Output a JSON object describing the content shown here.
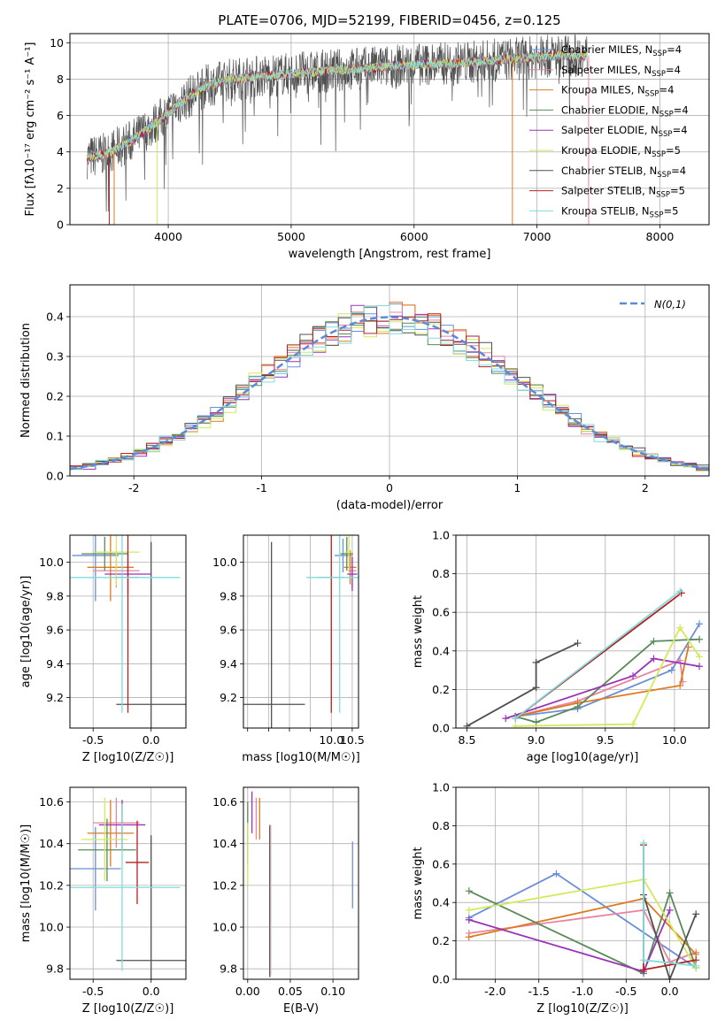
{
  "colors": {
    "Chabrier MILES": "#6a8fd8",
    "Salpeter MILES": "#e8849f",
    "Kroupa MILES": "#dd7b20",
    "Chabrier ELODIE": "#5a8a5a",
    "Salpeter ELODIE": "#9a34b8",
    "Kroupa ELODIE": "#d2ea5a",
    "Chabrier STELIB": "#505050",
    "Salpeter STELIB": "#b52020",
    "Kroupa STELIB": "#80dcdc"
  },
  "legend_labels": [
    {
      "name": "Chabrier MILES",
      "text": "Chabrier MILES, N",
      "sub": "SSP",
      "tail": "=4"
    },
    {
      "name": "Salpeter MILES",
      "text": "Salpeter MILES, N",
      "sub": "SSP",
      "tail": "=4"
    },
    {
      "name": "Kroupa MILES",
      "text": "Kroupa MILES, N",
      "sub": "SSP",
      "tail": "=4"
    },
    {
      "name": "Chabrier ELODIE",
      "text": "Chabrier ELODIE, N",
      "sub": "SSP",
      "tail": "=4"
    },
    {
      "name": "Salpeter ELODIE",
      "text": "Salpeter ELODIE, N",
      "sub": "SSP",
      "tail": "=4"
    },
    {
      "name": "Kroupa ELODIE",
      "text": "Kroupa ELODIE, N",
      "sub": "SSP",
      "tail": "=5"
    },
    {
      "name": "Chabrier STELIB",
      "text": "Chabrier STELIB, N",
      "sub": "SSP",
      "tail": "=4"
    },
    {
      "name": "Salpeter STELIB",
      "text": "Salpeter STELIB, N",
      "sub": "SSP",
      "tail": "=5"
    },
    {
      "name": "Kroupa STELIB",
      "text": "Kroupa STELIB, N",
      "sub": "SSP",
      "tail": "=5"
    }
  ],
  "chart_data": [
    {
      "id": "spectrum",
      "type": "line",
      "title": "PLATE=0706, MJD=52199, FIBERID=0456, z=0.125",
      "xlabel": "wavelength [Angstrom, rest frame]",
      "ylabel": "Flux [fλ10⁻¹⁷ erg cm⁻² s⁻¹ A⁻¹]",
      "xlim": [
        3200,
        8400
      ],
      "ylim": [
        0,
        10.5
      ],
      "xticks": [
        4000,
        5000,
        6000,
        7000,
        8000
      ],
      "yticks": [
        0,
        2,
        4,
        6,
        8,
        10
      ],
      "legend_position": "right",
      "data_envelope": {
        "x": [
          3340,
          3500,
          3700,
          3900,
          4100,
          4300,
          4500,
          4800,
          5200,
          5600,
          6000,
          6400,
          6800,
          7200,
          7400
        ],
        "y": [
          3.7,
          3.9,
          4.6,
          5.6,
          6.7,
          7.6,
          8.0,
          8.2,
          8.4,
          8.6,
          8.8,
          8.9,
          9.1,
          9.3,
          9.3
        ]
      }
    },
    {
      "id": "residuals",
      "type": "area",
      "xlabel": "(data-model)/error",
      "ylabel": "Normed distribution",
      "xlim": [
        -2.5,
        2.5
      ],
      "ylim": [
        0,
        0.48
      ],
      "xticks": [
        -2,
        -1,
        0,
        1,
        2
      ],
      "yticks": [
        0.0,
        0.1,
        0.2,
        0.3,
        0.4
      ],
      "legend": [
        {
          "label": "N(0,1)",
          "style": "dashed",
          "color": "#5b8ad8"
        }
      ],
      "legend_position": "top-right",
      "gaussian": {
        "mean": 0,
        "sigma": 1
      }
    },
    {
      "id": "age-vs-z",
      "type": "scatter",
      "xlabel": "Z [log10(Z/Z☉)]",
      "ylabel": "age  [log10(age/yr)]",
      "xlim": [
        -0.7,
        0.3
      ],
      "ylim": [
        9.02,
        10.16
      ],
      "xticks": [
        -0.5,
        0.0
      ],
      "yticks": [
        9.2,
        9.4,
        9.6,
        9.8,
        10.0
      ],
      "points": [
        {
          "model": "Chabrier MILES",
          "x": -0.48,
          "xerr": 0.2,
          "y": 10.04,
          "yerr": 0.27
        },
        {
          "model": "Salpeter MILES",
          "x": -0.3,
          "xerr": 0.2,
          "y": 9.95,
          "yerr": 0.1
        },
        {
          "model": "Kroupa MILES",
          "x": -0.35,
          "xerr": 0.2,
          "y": 9.97,
          "yerr": 0.2
        },
        {
          "model": "Chabrier ELODIE",
          "x": -0.4,
          "xerr": 0.2,
          "y": 10.05,
          "yerr": 0.1
        },
        {
          "model": "Salpeter ELODIE",
          "x": -0.2,
          "xerr": 0.2,
          "y": 9.93,
          "yerr": 0.12
        },
        {
          "model": "Kroupa ELODIE",
          "x": -0.3,
          "xerr": 0.2,
          "y": 10.06,
          "yerr": 0.2
        },
        {
          "model": "Chabrier STELIB",
          "x": 0.0,
          "xerr": 0.3,
          "y": 9.16,
          "yerr": 0.96
        },
        {
          "model": "Salpeter STELIB",
          "x": -0.2,
          "xerr": 0.1,
          "y": 9.91,
          "yerr": 0.8
        },
        {
          "model": "Kroupa STELIB",
          "x": -0.25,
          "xerr": 0.5,
          "y": 9.91,
          "yerr": 0.8
        }
      ]
    },
    {
      "id": "age-vs-mass",
      "type": "scatter",
      "xlabel": "mass [log10(M/M☉)]",
      "ylabel": "",
      "xlim": [
        7.9,
        10.65
      ],
      "ylim": [
        9.02,
        10.16
      ],
      "xticks": [
        8.0,
        8.5,
        9.0,
        9.5,
        10.0,
        10.5
      ],
      "xtick_labels": [
        "",
        "",
        "",
        "",
        "10.0",
        "10.5"
      ],
      "yticks": [
        9.2,
        9.4,
        9.6,
        9.8,
        10.0
      ],
      "points": [
        {
          "model": "Chabrier MILES",
          "x": 10.28,
          "xerr": 0.2,
          "y": 10.04,
          "yerr": 0.1
        },
        {
          "model": "Salpeter MILES",
          "x": 10.5,
          "xerr": 0.1,
          "y": 9.95,
          "yerr": 0.1
        },
        {
          "model": "Kroupa MILES",
          "x": 10.45,
          "xerr": 0.15,
          "y": 9.97,
          "yerr": 0.1
        },
        {
          "model": "Chabrier ELODIE",
          "x": 10.37,
          "xerr": 0.15,
          "y": 10.05,
          "yerr": 0.1
        },
        {
          "model": "Salpeter ELODIE",
          "x": 10.5,
          "xerr": 0.12,
          "y": 9.93,
          "yerr": 0.1
        },
        {
          "model": "Kroupa ELODIE",
          "x": 10.42,
          "xerr": 0.1,
          "y": 10.06,
          "yerr": 0.1
        },
        {
          "model": "Chabrier STELIB",
          "x": 8.57,
          "xerr": 0.8,
          "y": 9.16,
          "yerr": 0.96
        },
        {
          "model": "Salpeter STELIB",
          "x": 10.0,
          "xerr": 0.3,
          "y": 9.91,
          "yerr": 0.8
        },
        {
          "model": "Kroupa STELIB",
          "x": 10.2,
          "xerr": 0.8,
          "y": 9.91,
          "yerr": 0.8
        }
      ]
    },
    {
      "id": "weight-vs-age",
      "type": "line",
      "xlabel": "age  [log10(age/yr)]",
      "ylabel": "mass weight",
      "xlim": [
        8.42,
        10.25
      ],
      "ylim": [
        0,
        1.0
      ],
      "xticks": [
        8.5,
        9.0,
        9.5,
        10.0
      ],
      "yticks": [
        0.0,
        0.2,
        0.4,
        0.6,
        0.8,
        1.0
      ],
      "series": [
        {
          "model": "Chabrier MILES",
          "x": [
            8.85,
            9.3,
            9.98,
            10.18
          ],
          "y": [
            0.06,
            0.1,
            0.3,
            0.54
          ]
        },
        {
          "model": "Salpeter MILES",
          "x": [
            8.85,
            9.3,
            10.04,
            10.06
          ],
          "y": [
            0.06,
            0.14,
            0.35,
            0.24
          ]
        },
        {
          "model": "Kroupa MILES",
          "x": [
            8.85,
            9.3,
            10.04,
            10.1
          ],
          "y": [
            0.06,
            0.13,
            0.22,
            0.42
          ]
        },
        {
          "model": "Chabrier ELODIE",
          "x": [
            8.85,
            9.0,
            9.3,
            9.85,
            10.18
          ],
          "y": [
            0.06,
            0.03,
            0.11,
            0.45,
            0.46
          ]
        },
        {
          "model": "Salpeter ELODIE",
          "x": [
            8.78,
            9.7,
            9.85,
            10.18
          ],
          "y": [
            0.05,
            0.27,
            0.36,
            0.32
          ]
        },
        {
          "model": "Kroupa ELODIE",
          "x": [
            8.85,
            9.7,
            10.04,
            10.18
          ],
          "y": [
            0.01,
            0.02,
            0.52,
            0.37
          ]
        },
        {
          "model": "Chabrier STELIB",
          "x": [
            8.5,
            9.0,
            9.0,
            9.3
          ],
          "y": [
            0.01,
            0.21,
            0.34,
            0.44
          ]
        },
        {
          "model": "Salpeter STELIB",
          "x": [
            8.85,
            10.05
          ],
          "y": [
            0.05,
            0.7
          ]
        },
        {
          "model": "Kroupa STELIB",
          "x": [
            8.85,
            10.04
          ],
          "y": [
            0.05,
            0.71
          ]
        }
      ]
    },
    {
      "id": "mass-vs-z",
      "type": "scatter",
      "xlabel": "Z [log10(Z/Z☉)]",
      "ylabel": "mass [log10(M/M☉)]",
      "xlim": [
        -0.7,
        0.3
      ],
      "ylim": [
        9.75,
        10.67
      ],
      "xticks": [
        -0.5,
        0.0
      ],
      "yticks": [
        9.8,
        10.0,
        10.2,
        10.4,
        10.6
      ],
      "points": [
        {
          "model": "Chabrier MILES",
          "x": -0.48,
          "xerr": 0.22,
          "y": 10.28,
          "yerr": 0.2
        },
        {
          "model": "Salpeter MILES",
          "x": -0.3,
          "xerr": 0.2,
          "y": 10.5,
          "yerr": 0.12
        },
        {
          "model": "Kroupa MILES",
          "x": -0.35,
          "xerr": 0.2,
          "y": 10.45,
          "yerr": 0.16
        },
        {
          "model": "Chabrier ELODIE",
          "x": -0.38,
          "xerr": 0.25,
          "y": 10.37,
          "yerr": 0.15
        },
        {
          "model": "Salpeter ELODIE",
          "x": -0.25,
          "xerr": 0.2,
          "y": 10.49,
          "yerr": 0.12
        },
        {
          "model": "Kroupa ELODIE",
          "x": -0.4,
          "xerr": 0.2,
          "y": 10.42,
          "yerr": 0.2
        },
        {
          "model": "Chabrier STELIB",
          "x": 0.0,
          "xerr": 0.3,
          "y": 9.84,
          "yerr": 0.6
        },
        {
          "model": "Salpeter STELIB",
          "x": -0.12,
          "xerr": 0.1,
          "y": 10.31,
          "yerr": 0.2
        },
        {
          "model": "Kroupa STELIB",
          "x": -0.25,
          "xerr": 0.5,
          "y": 10.19,
          "yerr": 0.4
        }
      ]
    },
    {
      "id": "mass-vs-ebv",
      "type": "scatter",
      "xlabel": "E(B-V)",
      "ylabel": "",
      "xlim": [
        -0.005,
        0.13
      ],
      "ylim": [
        9.75,
        10.67
      ],
      "xticks": [
        0.0,
        0.05,
        0.1
      ],
      "xtick_labels": [
        "0.00",
        "0.05",
        "0.10"
      ],
      "yticks": [
        9.8,
        10.0,
        10.2,
        10.4,
        10.6
      ],
      "points": [
        {
          "model": "Chabrier MILES",
          "x": 0.123,
          "y": 10.25,
          "yerr": 0.16
        },
        {
          "model": "Salpeter MILES",
          "x": 0.01,
          "y": 10.52,
          "yerr": 0.1
        },
        {
          "model": "Kroupa MILES",
          "x": 0.014,
          "y": 10.52,
          "yerr": 0.1
        },
        {
          "model": "Chabrier ELODIE",
          "x": 0.0,
          "y": 10.45,
          "yerr": 0.15
        },
        {
          "model": "Salpeter ELODIE",
          "x": 0.005,
          "y": 10.55,
          "yerr": 0.1
        },
        {
          "model": "Kroupa ELODIE",
          "x": 0.0,
          "y": 10.35,
          "yerr": 0.15
        },
        {
          "model": "Chabrier STELIB",
          "x": 0.026,
          "y": 10.12,
          "yerr": 0.36
        },
        {
          "model": "Salpeter STELIB",
          "x": 0.026,
          "y": 10.13,
          "yerr": 0.36
        },
        {
          "model": "Kroupa STELIB",
          "x": 0.027,
          "y": 10.13,
          "yerr": 0.36
        }
      ]
    },
    {
      "id": "weight-vs-z",
      "type": "line",
      "xlabel": "Z [log10(Z/Z☉)]",
      "ylabel": "mass weight",
      "xlim": [
        -2.45,
        0.45
      ],
      "ylim": [
        0,
        1.0
      ],
      "xticks": [
        -2.0,
        -1.5,
        -1.0,
        -0.5,
        0.0
      ],
      "yticks": [
        0.0,
        0.2,
        0.4,
        0.6,
        0.8,
        1.0
      ],
      "series": [
        {
          "model": "Chabrier MILES",
          "x": [
            -2.3,
            -1.3,
            0.3
          ],
          "y": [
            0.32,
            0.55,
            0.06
          ]
        },
        {
          "model": "Salpeter MILES",
          "x": [
            -2.3,
            -0.3,
            0.0,
            0.3
          ],
          "y": [
            0.24,
            0.36,
            0.09,
            0.14
          ]
        },
        {
          "model": "Kroupa MILES",
          "x": [
            -2.3,
            -0.3,
            0.3
          ],
          "y": [
            0.22,
            0.42,
            0.13
          ]
        },
        {
          "model": "Chabrier ELODIE",
          "x": [
            -2.3,
            -0.3,
            0.0,
            0.3
          ],
          "y": [
            0.46,
            0.03,
            0.45,
            0.06
          ]
        },
        {
          "model": "Salpeter ELODIE",
          "x": [
            -2.3,
            -0.3,
            0.0
          ],
          "y": [
            0.31,
            0.04,
            0.36
          ]
        },
        {
          "model": "Kroupa ELODIE",
          "x": [
            -2.3,
            -0.3,
            0.3
          ],
          "y": [
            0.36,
            0.52,
            0.06
          ]
        },
        {
          "model": "Chabrier STELIB",
          "x": [
            -0.3,
            0.0,
            0.3
          ],
          "y": [
            0.44,
            0.0,
            0.34
          ]
        },
        {
          "model": "Salpeter STELIB",
          "x": [
            -0.3,
            -0.3,
            0.3
          ],
          "y": [
            0.7,
            0.05,
            0.1
          ]
        },
        {
          "model": "Kroupa STELIB",
          "x": [
            -0.3,
            -0.3,
            0.3
          ],
          "y": [
            0.71,
            0.1,
            0.07
          ]
        }
      ]
    }
  ]
}
